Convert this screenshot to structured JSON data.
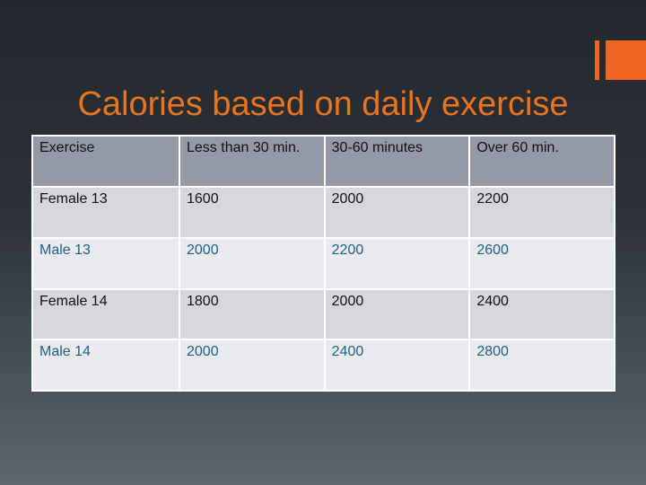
{
  "slide": {
    "title": "Calories based on daily exercise",
    "accent_color": "#f26522"
  },
  "table": {
    "headers": [
      "Exercise",
      "Less than 30 min.",
      "30-60 minutes",
      "Over 60 min."
    ],
    "rows": [
      [
        "Female 13",
        "1600",
        "2000",
        "2200"
      ],
      [
        "Male 13",
        "2000",
        "2200",
        "2600"
      ],
      [
        "Female 14",
        "1800",
        "2000",
        "2400"
      ],
      [
        "Male 14",
        "2000",
        "2400",
        "2800"
      ]
    ]
  }
}
